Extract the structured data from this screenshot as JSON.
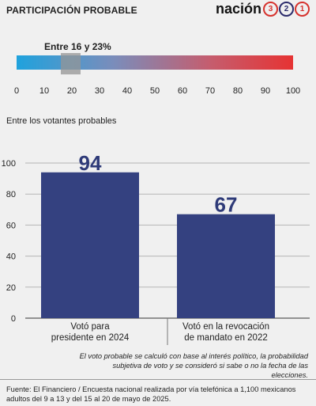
{
  "header": {
    "title": "PARTICIPACIÓN PROBABLE"
  },
  "brand": {
    "word": "nación",
    "digits": [
      "3",
      "2",
      "1"
    ]
  },
  "gauge": {
    "range_label": "Entre 16 y 23%",
    "min": 0,
    "max": 100,
    "band_from": 16,
    "band_to": 23,
    "ticks": [
      "0",
      "10",
      "20",
      "30",
      "40",
      "50",
      "60",
      "70",
      "80",
      "90",
      "100"
    ],
    "gradient_start": "#1fa2dd",
    "gradient_end": "#e63333"
  },
  "subtitle": "Entre los votantes probables",
  "chart_data": {
    "type": "bar",
    "categories": [
      [
        "Votó para",
        "presidente en 2024"
      ],
      [
        "Votó en la revocación",
        "de mandato en 2022"
      ]
    ],
    "values": [
      94,
      67
    ],
    "ylim": [
      0,
      100
    ],
    "yticks": [
      0,
      20,
      40,
      60,
      80,
      100
    ],
    "bar_color": "#344180",
    "value_label_color": "#2e3a78"
  },
  "note": "El voto probable se calculó con base al interés político, la probabilidad subjetiva de voto y se consideró si sabe o no la fecha de las elecciones.",
  "source": "Fuente: El Financiero / Encuesta nacional realizada por vía telefónica a 1,100 mexicanos adultos del 9 a 13 y del 15 al 20 de mayo de 2025."
}
